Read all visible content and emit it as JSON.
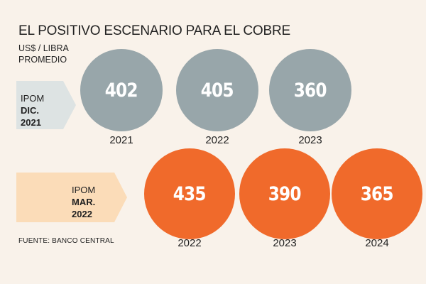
{
  "title": "EL POSITIVO ESCENARIO PARA EL COBRE",
  "unit_line1": "US$ / LIBRA",
  "unit_line2": "PROMEDIO",
  "source": "FUENTE: BANCO CENTRAL",
  "colors": {
    "gray": "#98a6aa",
    "orange": "#f06a2b",
    "gray_tag": "#dde3e3",
    "orange_tag": "#fbdcb8",
    "background": "#f9f2ea"
  },
  "chart_data": {
    "type": "bubble",
    "title": "EL POSITIVO ESCENARIO PARA EL COBRE",
    "ylabel": "US$ / LIBRA PROMEDIO",
    "series": [
      {
        "name_line1": "IPOM",
        "name_line2": "DIC. 2021",
        "color": "#98a6aa",
        "x": [
          "2021",
          "2022",
          "2023"
        ],
        "values": [
          402,
          405,
          360
        ]
      },
      {
        "name_line1": "IPOM",
        "name_line2": "MAR. 2022",
        "color": "#f06a2b",
        "x": [
          "2022",
          "2023",
          "2024"
        ],
        "values": [
          435,
          390,
          365
        ]
      }
    ]
  }
}
